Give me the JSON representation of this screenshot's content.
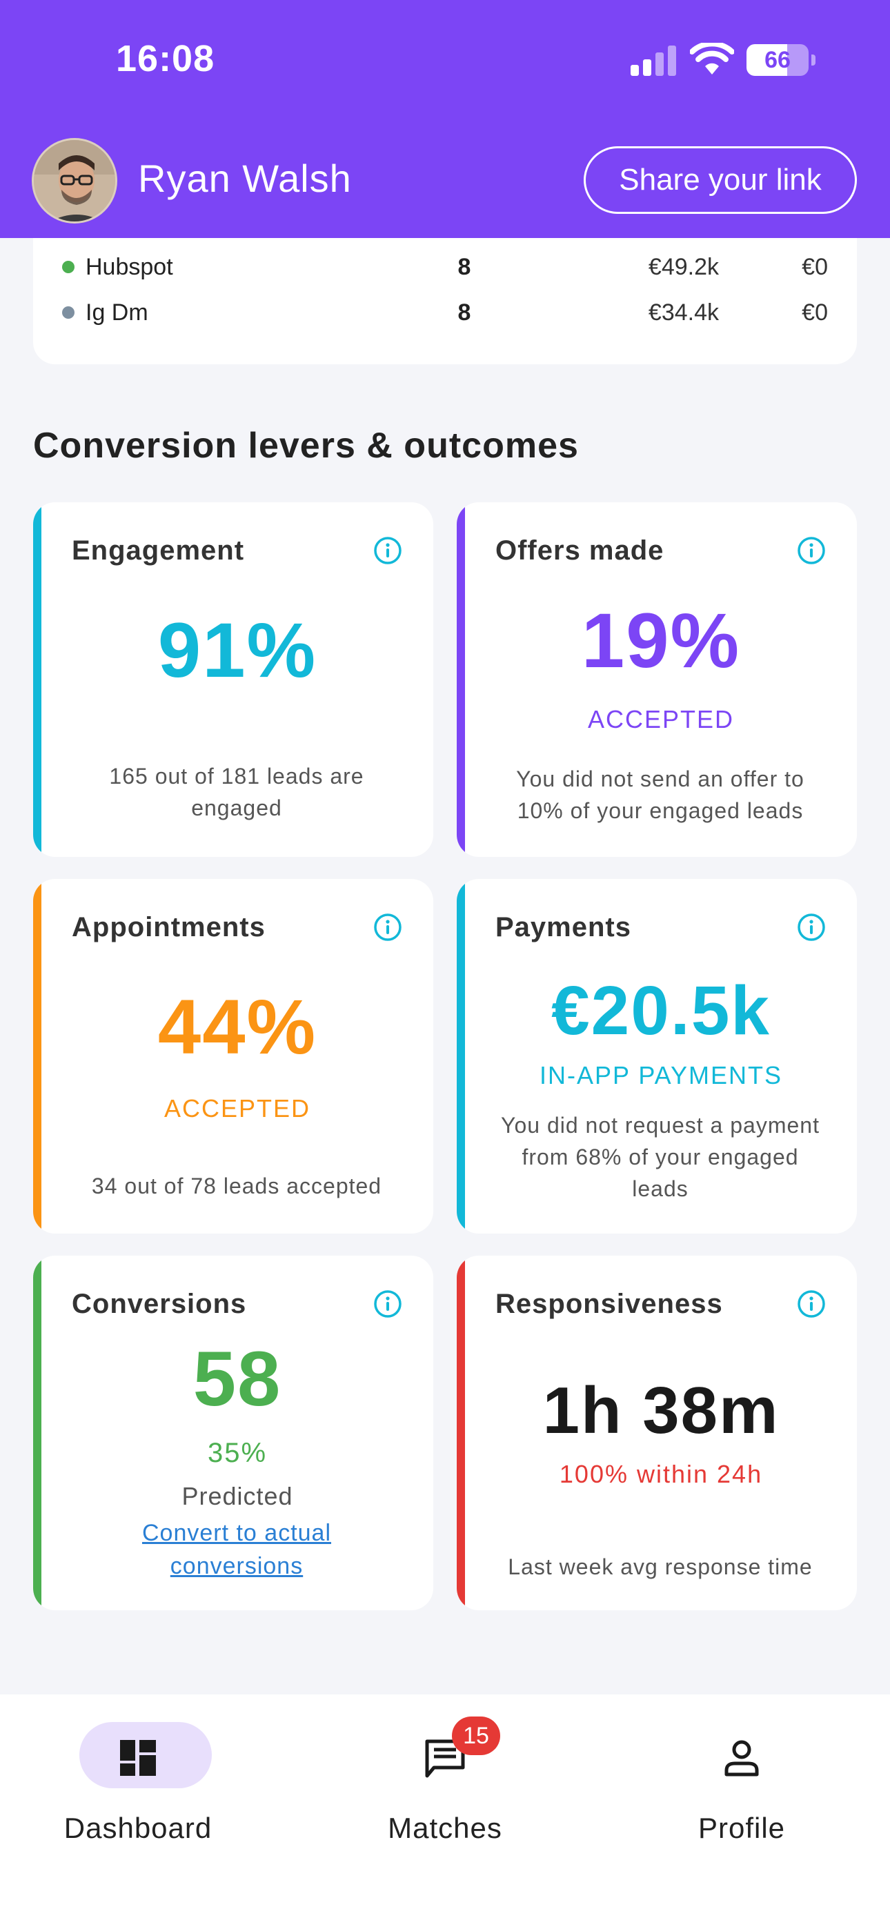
{
  "status_bar": {
    "time": "16:08",
    "battery": "66"
  },
  "header": {
    "user_name": "Ryan Walsh",
    "share_label": "Share your link"
  },
  "sources_table": {
    "rows": [
      {
        "source": "Hubspot",
        "count": "8",
        "value": "€49.2k",
        "other": "€0",
        "dot_color": "#4caf50"
      },
      {
        "source": "Ig Dm",
        "count": "8",
        "value": "€34.4k",
        "other": "€0",
        "dot_color": "#7d8fa0"
      }
    ]
  },
  "section_title": "Conversion levers & outcomes",
  "cards": {
    "engagement": {
      "title": "Engagement",
      "value": "91%",
      "desc": "165 out of 181 leads are engaged",
      "color": "#12b8d8"
    },
    "offers": {
      "title": "Offers made",
      "value": "19%",
      "sub": "ACCEPTED",
      "desc": "You did not send an offer to 10% of your engaged leads",
      "color": "#7c45f5"
    },
    "appointments": {
      "title": "Appointments",
      "value": "44%",
      "sub": "ACCEPTED",
      "desc": "34 out of 78 leads accepted",
      "color": "#fb9414"
    },
    "payments": {
      "title": "Payments",
      "value": "€20.5k",
      "sub": "IN-APP PAYMENTS",
      "desc": "You did not request a payment from 68% of your engaged leads",
      "color": "#12b8d8"
    },
    "conversions": {
      "title": "Conversions",
      "value": "58",
      "sub": "35%",
      "predicted": "Predicted",
      "link": "Convert to actual conversions",
      "color": "#4caf50"
    },
    "responsiveness": {
      "title": "Responsiveness",
      "value": "1h 38m",
      "sub": "100% within 24h",
      "desc": "Last week avg response time",
      "color": "#e53935"
    }
  },
  "nav": {
    "dashboard": "Dashboard",
    "matches": "Matches",
    "matches_badge": "15",
    "profile": "Profile"
  }
}
